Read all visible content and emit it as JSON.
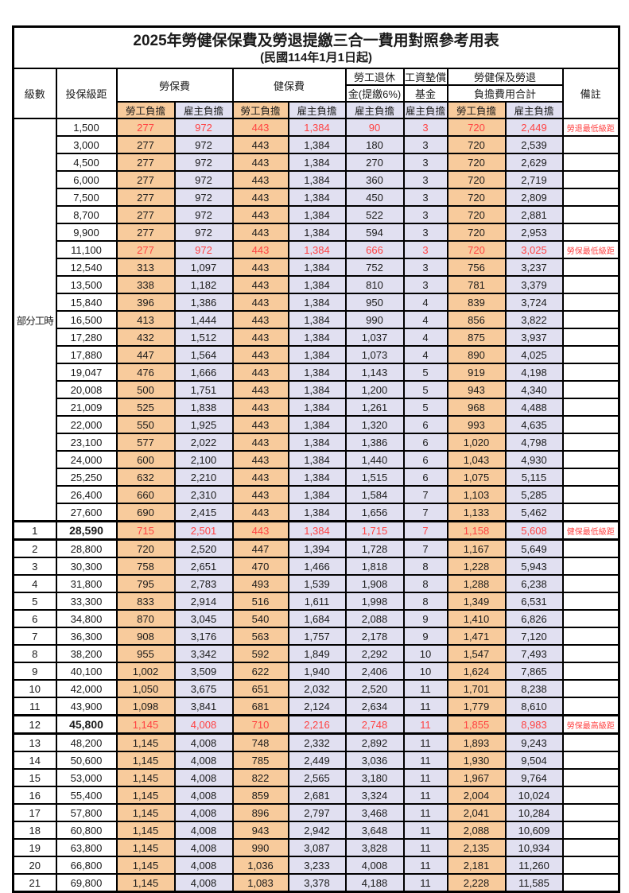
{
  "title": "2025年勞健保保費及勞退提繳三合一費用對照參考用表",
  "subtitle": "(民國114年1月1日起)",
  "colors": {
    "employee_bg": "#F8CB9C",
    "employer_bg": "#E1E0F1",
    "highlight_text": "#FF4242"
  },
  "header": {
    "level": "級數",
    "bracket": "投保級距",
    "labor": "勞保費",
    "health": "健保費",
    "pension_line1": "勞工退休",
    "pension_line2": "金(提繳6%)",
    "wage_fund_line1": "工資墊償",
    "wage_fund_line2": "基金",
    "total_line1": "勞健保及勞退",
    "total_line2": "負擔費用合計",
    "remark": "備註",
    "employee": "勞工負擔",
    "employer": "雇主負擔"
  },
  "part_time_label": "部分工時",
  "part_time_rowspan": 23,
  "rows": [
    {
      "lv": "",
      "br": "1,500",
      "v": [
        "277",
        "972",
        "443",
        "1,384",
        "90",
        "3",
        "720",
        "2,449"
      ],
      "rm": "勞退最低級距",
      "red": true
    },
    {
      "lv": "",
      "br": "3,000",
      "v": [
        "277",
        "972",
        "443",
        "1,384",
        "180",
        "3",
        "720",
        "2,539"
      ],
      "rm": ""
    },
    {
      "lv": "",
      "br": "4,500",
      "v": [
        "277",
        "972",
        "443",
        "1,384",
        "270",
        "3",
        "720",
        "2,629"
      ],
      "rm": ""
    },
    {
      "lv": "",
      "br": "6,000",
      "v": [
        "277",
        "972",
        "443",
        "1,384",
        "360",
        "3",
        "720",
        "2,719"
      ],
      "rm": ""
    },
    {
      "lv": "",
      "br": "7,500",
      "v": [
        "277",
        "972",
        "443",
        "1,384",
        "450",
        "3",
        "720",
        "2,809"
      ],
      "rm": ""
    },
    {
      "lv": "",
      "br": "8,700",
      "v": [
        "277",
        "972",
        "443",
        "1,384",
        "522",
        "3",
        "720",
        "2,881"
      ],
      "rm": ""
    },
    {
      "lv": "",
      "br": "9,900",
      "v": [
        "277",
        "972",
        "443",
        "1,384",
        "594",
        "3",
        "720",
        "2,953"
      ],
      "rm": ""
    },
    {
      "lv": "",
      "br": "11,100",
      "v": [
        "277",
        "972",
        "443",
        "1,384",
        "666",
        "3",
        "720",
        "3,025"
      ],
      "rm": "勞保最低級距",
      "red": true
    },
    {
      "lv": "",
      "br": "12,540",
      "v": [
        "313",
        "1,097",
        "443",
        "1,384",
        "752",
        "3",
        "756",
        "3,237"
      ],
      "rm": ""
    },
    {
      "lv": "",
      "br": "13,500",
      "v": [
        "338",
        "1,182",
        "443",
        "1,384",
        "810",
        "3",
        "781",
        "3,379"
      ],
      "rm": ""
    },
    {
      "lv": "",
      "br": "15,840",
      "v": [
        "396",
        "1,386",
        "443",
        "1,384",
        "950",
        "4",
        "839",
        "3,724"
      ],
      "rm": ""
    },
    {
      "lv": "",
      "br": "16,500",
      "v": [
        "413",
        "1,444",
        "443",
        "1,384",
        "990",
        "4",
        "856",
        "3,822"
      ],
      "rm": ""
    },
    {
      "lv": "",
      "br": "17,280",
      "v": [
        "432",
        "1,512",
        "443",
        "1,384",
        "1,037",
        "4",
        "875",
        "3,937"
      ],
      "rm": ""
    },
    {
      "lv": "",
      "br": "17,880",
      "v": [
        "447",
        "1,564",
        "443",
        "1,384",
        "1,073",
        "4",
        "890",
        "4,025"
      ],
      "rm": ""
    },
    {
      "lv": "",
      "br": "19,047",
      "v": [
        "476",
        "1,666",
        "443",
        "1,384",
        "1,143",
        "5",
        "919",
        "4,198"
      ],
      "rm": ""
    },
    {
      "lv": "",
      "br": "20,008",
      "v": [
        "500",
        "1,751",
        "443",
        "1,384",
        "1,200",
        "5",
        "943",
        "4,340"
      ],
      "rm": ""
    },
    {
      "lv": "",
      "br": "21,009",
      "v": [
        "525",
        "1,838",
        "443",
        "1,384",
        "1,261",
        "5",
        "968",
        "4,488"
      ],
      "rm": ""
    },
    {
      "lv": "",
      "br": "22,000",
      "v": [
        "550",
        "1,925",
        "443",
        "1,384",
        "1,320",
        "6",
        "993",
        "4,635"
      ],
      "rm": ""
    },
    {
      "lv": "",
      "br": "23,100",
      "v": [
        "577",
        "2,022",
        "443",
        "1,384",
        "1,386",
        "6",
        "1,020",
        "4,798"
      ],
      "rm": ""
    },
    {
      "lv": "",
      "br": "24,000",
      "v": [
        "600",
        "2,100",
        "443",
        "1,384",
        "1,440",
        "6",
        "1,043",
        "4,930"
      ],
      "rm": ""
    },
    {
      "lv": "",
      "br": "25,250",
      "v": [
        "632",
        "2,210",
        "443",
        "1,384",
        "1,515",
        "6",
        "1,075",
        "5,115"
      ],
      "rm": ""
    },
    {
      "lv": "",
      "br": "26,400",
      "v": [
        "660",
        "2,310",
        "443",
        "1,384",
        "1,584",
        "7",
        "1,103",
        "5,285"
      ],
      "rm": ""
    },
    {
      "lv": "",
      "br": "27,600",
      "v": [
        "690",
        "2,415",
        "443",
        "1,384",
        "1,656",
        "7",
        "1,133",
        "5,462"
      ],
      "rm": ""
    },
    {
      "lv": "1",
      "br": "28,590",
      "v": [
        "715",
        "2,501",
        "443",
        "1,384",
        "1,715",
        "7",
        "1,158",
        "5,608"
      ],
      "rm": "健保最低級距",
      "red": true,
      "bold": true,
      "thick": true
    },
    {
      "lv": "2",
      "br": "28,800",
      "v": [
        "720",
        "2,520",
        "447",
        "1,394",
        "1,728",
        "7",
        "1,167",
        "5,649"
      ],
      "rm": ""
    },
    {
      "lv": "3",
      "br": "30,300",
      "v": [
        "758",
        "2,651",
        "470",
        "1,466",
        "1,818",
        "8",
        "1,228",
        "5,943"
      ],
      "rm": ""
    },
    {
      "lv": "4",
      "br": "31,800",
      "v": [
        "795",
        "2,783",
        "493",
        "1,539",
        "1,908",
        "8",
        "1,288",
        "6,238"
      ],
      "rm": ""
    },
    {
      "lv": "5",
      "br": "33,300",
      "v": [
        "833",
        "2,914",
        "516",
        "1,611",
        "1,998",
        "8",
        "1,349",
        "6,531"
      ],
      "rm": ""
    },
    {
      "lv": "6",
      "br": "34,800",
      "v": [
        "870",
        "3,045",
        "540",
        "1,684",
        "2,088",
        "9",
        "1,410",
        "6,826"
      ],
      "rm": ""
    },
    {
      "lv": "7",
      "br": "36,300",
      "v": [
        "908",
        "3,176",
        "563",
        "1,757",
        "2,178",
        "9",
        "1,471",
        "7,120"
      ],
      "rm": ""
    },
    {
      "lv": "8",
      "br": "38,200",
      "v": [
        "955",
        "3,342",
        "592",
        "1,849",
        "2,292",
        "10",
        "1,547",
        "7,493"
      ],
      "rm": ""
    },
    {
      "lv": "9",
      "br": "40,100",
      "v": [
        "1,002",
        "3,509",
        "622",
        "1,940",
        "2,406",
        "10",
        "1,624",
        "7,865"
      ],
      "rm": ""
    },
    {
      "lv": "10",
      "br": "42,000",
      "v": [
        "1,050",
        "3,675",
        "651",
        "2,032",
        "2,520",
        "11",
        "1,701",
        "8,238"
      ],
      "rm": ""
    },
    {
      "lv": "11",
      "br": "43,900",
      "v": [
        "1,098",
        "3,841",
        "681",
        "2,124",
        "2,634",
        "11",
        "1,779",
        "8,610"
      ],
      "rm": ""
    },
    {
      "lv": "12",
      "br": "45,800",
      "v": [
        "1,145",
        "4,008",
        "710",
        "2,216",
        "2,748",
        "11",
        "1,855",
        "8,983"
      ],
      "rm": "勞保最高級距",
      "red": true,
      "bold": true,
      "thick": true
    },
    {
      "lv": "13",
      "br": "48,200",
      "v": [
        "1,145",
        "4,008",
        "748",
        "2,332",
        "2,892",
        "11",
        "1,893",
        "9,243"
      ],
      "rm": ""
    },
    {
      "lv": "14",
      "br": "50,600",
      "v": [
        "1,145",
        "4,008",
        "785",
        "2,449",
        "3,036",
        "11",
        "1,930",
        "9,504"
      ],
      "rm": ""
    },
    {
      "lv": "15",
      "br": "53,000",
      "v": [
        "1,145",
        "4,008",
        "822",
        "2,565",
        "3,180",
        "11",
        "1,967",
        "9,764"
      ],
      "rm": ""
    },
    {
      "lv": "16",
      "br": "55,400",
      "v": [
        "1,145",
        "4,008",
        "859",
        "2,681",
        "3,324",
        "11",
        "2,004",
        "10,024"
      ],
      "rm": ""
    },
    {
      "lv": "17",
      "br": "57,800",
      "v": [
        "1,145",
        "4,008",
        "896",
        "2,797",
        "3,468",
        "11",
        "2,041",
        "10,284"
      ],
      "rm": ""
    },
    {
      "lv": "18",
      "br": "60,800",
      "v": [
        "1,145",
        "4,008",
        "943",
        "2,942",
        "3,648",
        "11",
        "2,088",
        "10,609"
      ],
      "rm": ""
    },
    {
      "lv": "19",
      "br": "63,800",
      "v": [
        "1,145",
        "4,008",
        "990",
        "3,087",
        "3,828",
        "11",
        "2,135",
        "10,934"
      ],
      "rm": ""
    },
    {
      "lv": "20",
      "br": "66,800",
      "v": [
        "1,145",
        "4,008",
        "1,036",
        "3,233",
        "4,008",
        "11",
        "2,181",
        "11,260"
      ],
      "rm": ""
    },
    {
      "lv": "21",
      "br": "69,800",
      "v": [
        "1,145",
        "4,008",
        "1,083",
        "3,378",
        "4,188",
        "11",
        "2,228",
        "11,585"
      ],
      "rm": ""
    }
  ]
}
